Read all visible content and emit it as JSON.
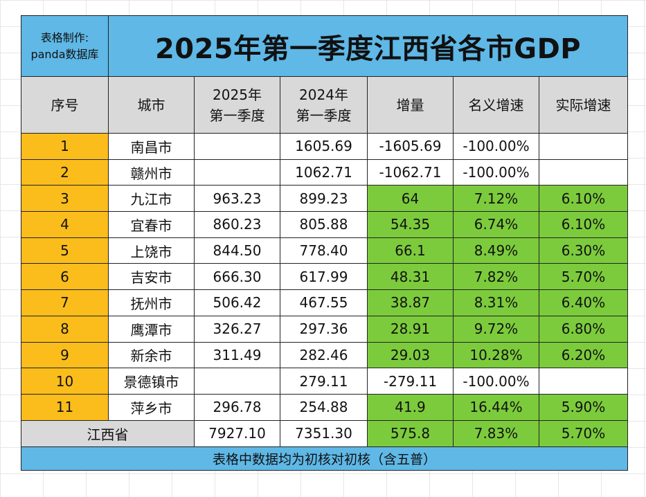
{
  "maker": {
    "line1": "表格制作:",
    "line2": "panda数据库"
  },
  "title": "2025年第一季度江西省各市GDP",
  "headers": {
    "index": "序号",
    "city": "城市",
    "gdp_2025_line1": "2025年",
    "gdp_2025_line2": "第一季度",
    "gdp_2024_line1": "2024年",
    "gdp_2024_line2": "第一季度",
    "increase": "增量",
    "nominal": "名义增速",
    "real": "实际增速"
  },
  "rows": [
    {
      "no": "1",
      "city": "南昌市",
      "gdp2025": "",
      "gdp2024": "1605.69",
      "increase": "-1605.69",
      "nominal": "-100.00%",
      "real": ""
    },
    {
      "no": "2",
      "city": "赣州市",
      "gdp2025": "",
      "gdp2024": "1062.71",
      "increase": "-1062.71",
      "nominal": "-100.00%",
      "real": ""
    },
    {
      "no": "3",
      "city": "九江市",
      "gdp2025": "963.23",
      "gdp2024": "899.23",
      "increase": "64",
      "nominal": "7.12%",
      "real": "6.10%"
    },
    {
      "no": "4",
      "city": "宜春市",
      "gdp2025": "860.23",
      "gdp2024": "805.88",
      "increase": "54.35",
      "nominal": "6.74%",
      "real": "6.10%"
    },
    {
      "no": "5",
      "city": "上饶市",
      "gdp2025": "844.50",
      "gdp2024": "778.40",
      "increase": "66.1",
      "nominal": "8.49%",
      "real": "6.30%"
    },
    {
      "no": "6",
      "city": "吉安市",
      "gdp2025": "666.30",
      "gdp2024": "617.99",
      "increase": "48.31",
      "nominal": "7.82%",
      "real": "5.70%"
    },
    {
      "no": "7",
      "city": "抚州市",
      "gdp2025": "506.42",
      "gdp2024": "467.55",
      "increase": "38.87",
      "nominal": "8.31%",
      "real": "6.40%"
    },
    {
      "no": "8",
      "city": "鹰潭市",
      "gdp2025": "326.27",
      "gdp2024": "297.36",
      "increase": "28.91",
      "nominal": "9.72%",
      "real": "6.80%"
    },
    {
      "no": "9",
      "city": "新余市",
      "gdp2025": "311.49",
      "gdp2024": "282.46",
      "increase": "29.03",
      "nominal": "10.28%",
      "real": "6.20%"
    },
    {
      "no": "10",
      "city": "景德镇市",
      "gdp2025": "",
      "gdp2024": "279.11",
      "increase": "-279.11",
      "nominal": "-100.00%",
      "real": ""
    },
    {
      "no": "11",
      "city": "萍乡市",
      "gdp2025": "296.78",
      "gdp2024": "254.88",
      "increase": "41.9",
      "nominal": "16.44%",
      "real": "5.90%"
    }
  ],
  "total": {
    "label": "江西省",
    "gdp2025": "7927.10",
    "gdp2024": "7351.30",
    "increase": "575.8",
    "nominal": "7.83%",
    "real": "5.70%"
  },
  "note": "表格中数据均为初核对初核（含五普）",
  "colors": {
    "header_blue": "#5fb8e6",
    "header_gray": "#d9d9d9",
    "index_orange": "#fbbd1c",
    "highlight_green": "#7ccb3c"
  }
}
